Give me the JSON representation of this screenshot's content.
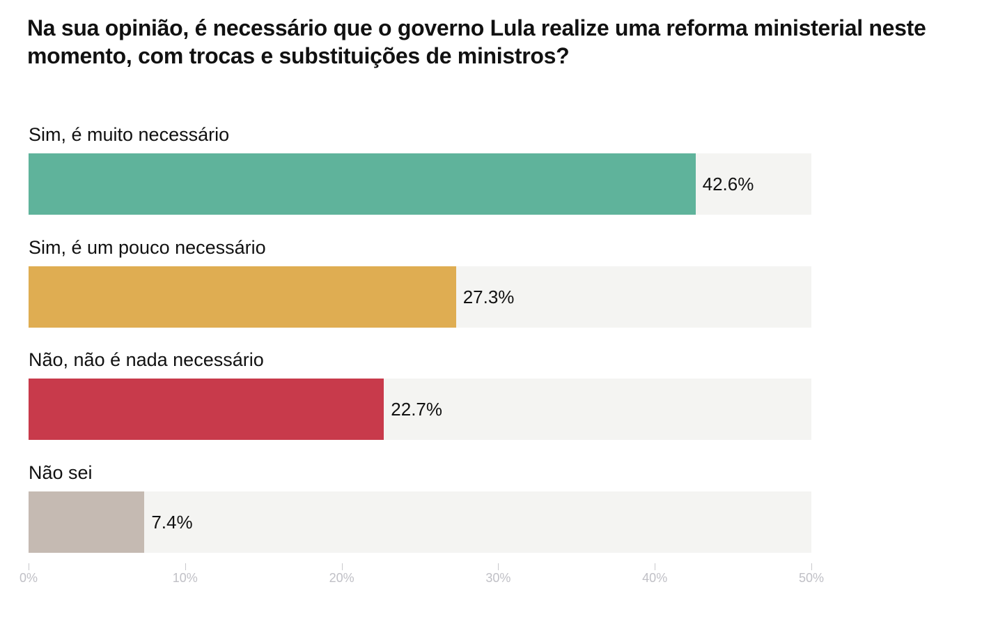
{
  "chart_data": {
    "type": "bar",
    "orientation": "horizontal",
    "title": "Na sua opinião, é necessário que o governo Lula realize uma reforma ministerial neste momento, com trocas e substituições de ministros?",
    "categories": [
      "Sim, é muito necessário",
      "Sim, é um pouco necessário",
      "Não, não é nada necessário",
      "Não sei"
    ],
    "values": [
      42.6,
      27.3,
      22.7,
      7.4
    ],
    "value_labels": [
      "42.6%",
      "27.3%",
      "22.7%",
      "7.4%"
    ],
    "colors": [
      "#5fb39b",
      "#dfad52",
      "#c83a4b",
      "#c5bab2"
    ],
    "track_color": "#f4f4f2",
    "xlim": [
      0,
      50
    ],
    "xticks": [
      0,
      10,
      20,
      30,
      40,
      50
    ],
    "xtick_labels": [
      "0%",
      "10%",
      "20%",
      "30%",
      "40%",
      "50%"
    ],
    "xlabel": "",
    "ylabel": "",
    "grid": false
  }
}
